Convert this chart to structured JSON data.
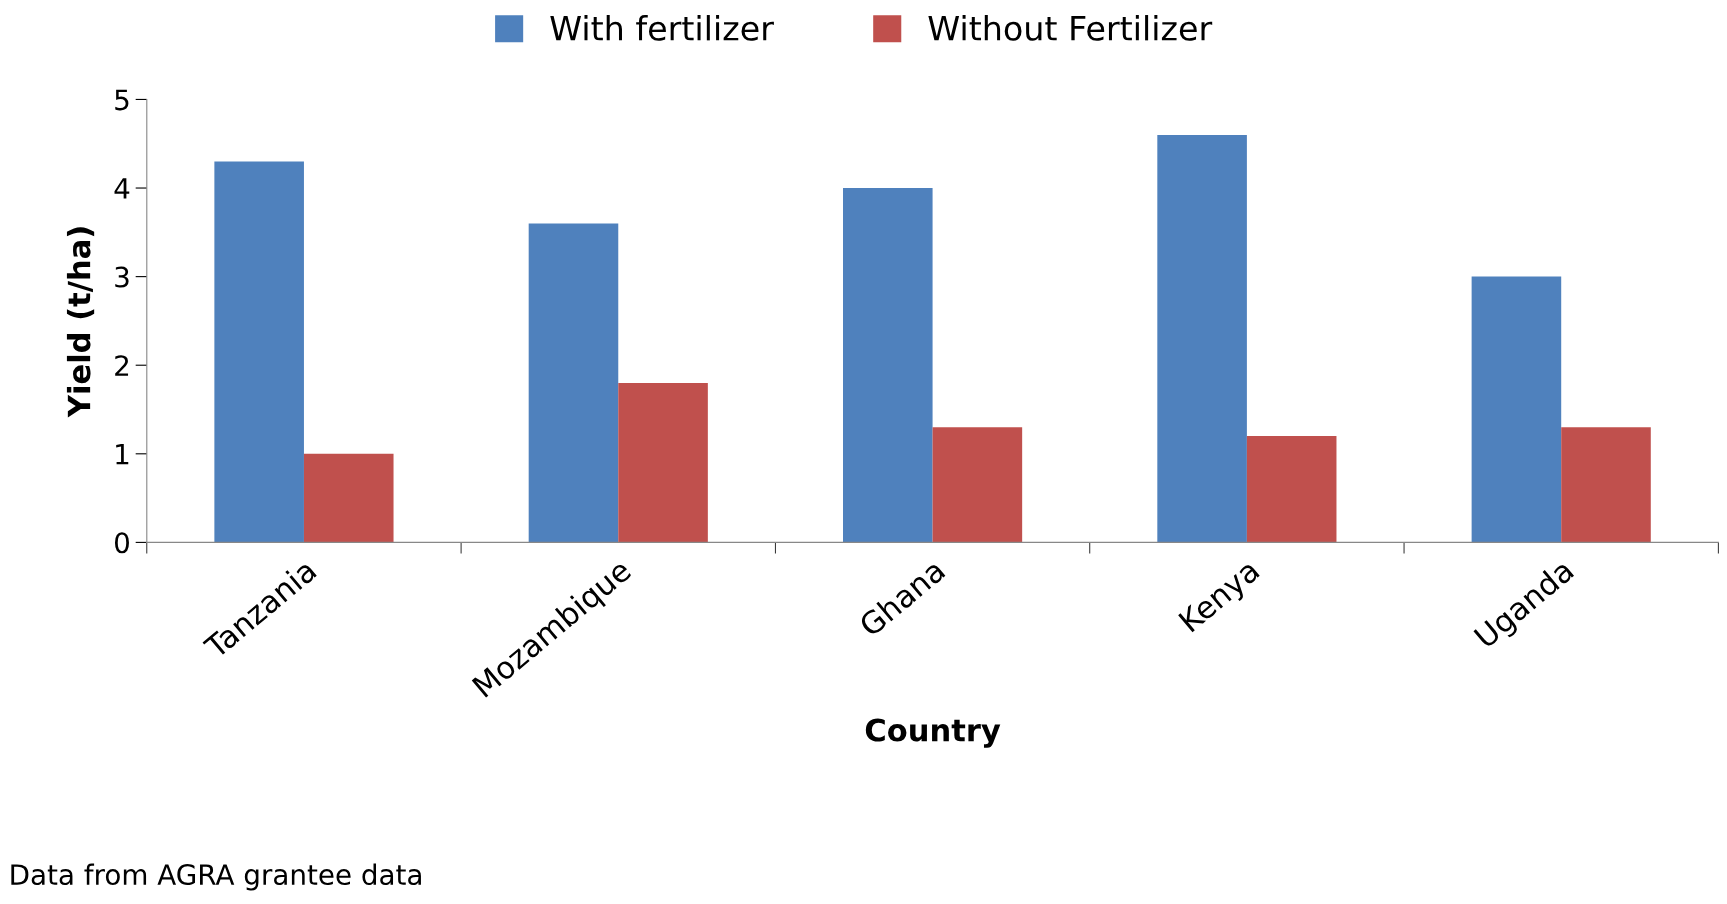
{
  "chart_data": {
    "type": "bar",
    "xlabel": "Country",
    "ylabel": "Yield (t/ha)",
    "categories": [
      "Tanzania",
      "Mozambique",
      "Ghana",
      "Kenya",
      "Uganda"
    ],
    "series": [
      {
        "name": "With fertilizer",
        "color": "#4f81bd",
        "values": [
          4.3,
          3.6,
          4.0,
          4.6,
          3.0
        ]
      },
      {
        "name": "Without Fertilizer",
        "color": "#c0504d",
        "values": [
          1.0,
          1.8,
          1.3,
          1.2,
          1.3
        ]
      }
    ],
    "ylim": [
      0,
      5
    ],
    "yticks": [
      0,
      1,
      2,
      3,
      4,
      5
    ],
    "grid": false,
    "legend": "top",
    "annotations": [
      "Data from AGRA grantee data"
    ]
  }
}
